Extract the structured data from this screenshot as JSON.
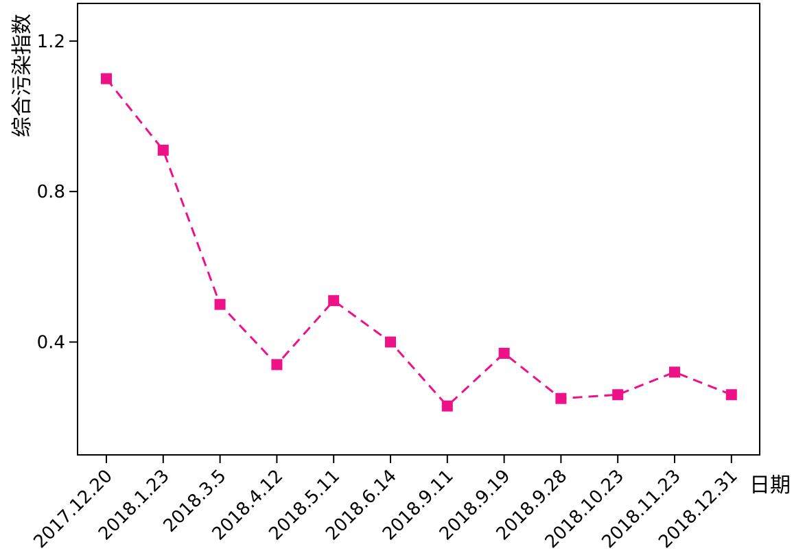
{
  "chart_data": {
    "type": "line",
    "xlabel": "日期",
    "ylabel": "综合污染指数",
    "categories": [
      "2017.12.20",
      "2018.1.23",
      "2018.3.5",
      "2018.4.12",
      "2018.5.11",
      "2018.6.14",
      "2018.9.11",
      "2018.9.19",
      "2018.9.28",
      "2018.10.23",
      "2018.11.23",
      "2018.12.31"
    ],
    "series": [
      {
        "values": [
          1.1,
          0.91,
          0.5,
          0.34,
          0.51,
          0.4,
          0.23,
          0.37,
          0.25,
          0.26,
          0.32,
          0.26
        ]
      }
    ],
    "ylim": [
      0.1,
      1.3
    ],
    "yticks": [
      0.4,
      0.8,
      1.2
    ],
    "ytick_labels": [
      "0.4",
      "0.8",
      "1.2"
    ],
    "grid": false,
    "line_style": "dashed",
    "marker": "square",
    "color": "#ee1188"
  }
}
